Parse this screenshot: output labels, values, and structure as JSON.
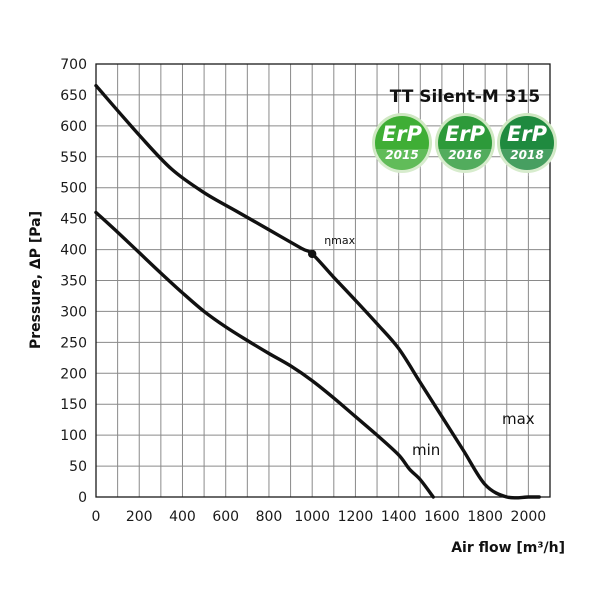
{
  "chart_data": {
    "type": "line",
    "title": "TT Silent-M 315",
    "xlabel": "Air flow [m³/h]",
    "ylabel": "Pressure, ΔP [Pa]",
    "xlim": [
      0,
      2100
    ],
    "ylim": [
      0,
      700
    ],
    "x_ticks": [
      "0",
      "200",
      "400",
      "600",
      "800",
      "1000",
      "1200",
      "1400",
      "1600",
      "1800",
      "2000"
    ],
    "y_ticks": [
      "0",
      "50",
      "100",
      "150",
      "200",
      "250",
      "300",
      "350",
      "400",
      "450",
      "500",
      "550",
      "600",
      "650",
      "700"
    ],
    "grid": true,
    "series": [
      {
        "name": "max",
        "x": [
          0,
          200,
          350,
          500,
          650,
          800,
          950,
          1000,
          1100,
          1200,
          1300,
          1400,
          1500,
          1600,
          1700,
          1800,
          1900,
          2000,
          2050
        ],
        "y": [
          665,
          585,
          530,
          492,
          462,
          432,
          402,
          393,
          355,
          318,
          280,
          240,
          185,
          130,
          75,
          20,
          -35,
          -10,
          0
        ]
      },
      {
        "name": "min",
        "x": [
          0,
          100,
          200,
          300,
          400,
          500,
          600,
          700,
          800,
          900,
          1000,
          1100,
          1200,
          1300,
          1400,
          1450,
          1500,
          1560
        ],
        "y": [
          460,
          428,
          395,
          362,
          330,
          300,
          275,
          253,
          232,
          212,
          188,
          160,
          130,
          100,
          68,
          45,
          28,
          0
        ]
      }
    ],
    "annotations": [
      {
        "text": "ηmax",
        "x": 1000,
        "y": 393
      }
    ],
    "badges": [
      {
        "top": "ErP",
        "year": "2015",
        "color": "#3fae35"
      },
      {
        "top": "ErP",
        "year": "2016",
        "color": "#2d9a3a"
      },
      {
        "top": "ErP",
        "year": "2018",
        "color": "#1f8a3f"
      }
    ]
  }
}
